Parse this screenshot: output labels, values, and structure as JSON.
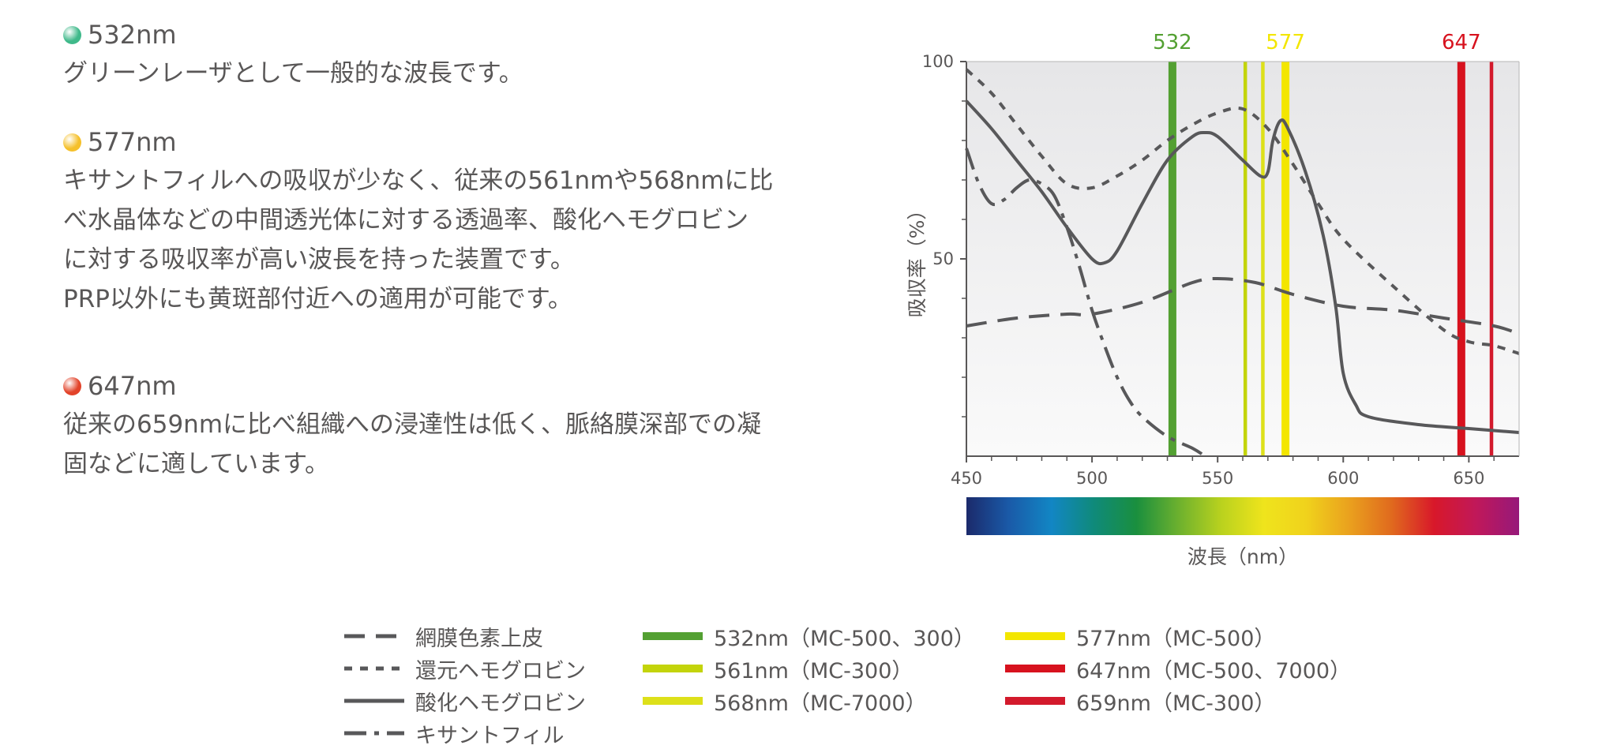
{
  "sections": [
    {
      "title": "532nm",
      "body": "グリーンレーザとして一般的な波長です。",
      "dot_color": "#3fb98a"
    },
    {
      "title": "577nm",
      "body": "キサントフィルへの吸収が少なく、従来の561nmや568nmに比\nべ水晶体などの中間透光体に対する透過率、酸化ヘモグロビン\nに対する吸収率が高い波長を持った装置です。\nPRP以外にも黄斑部付近への適用が可能です。",
      "dot_color": "#f5c02a"
    },
    {
      "title": "647nm",
      "body": "従来の659nmに比べ組織への浸達性は低く、脈絡膜深部での凝\n固などに適しています。",
      "dot_color": "#e2432a"
    }
  ],
  "chart_data": {
    "type": "line",
    "xlabel": "波長（nm）",
    "ylabel": "吸収率（%）",
    "xlim": [
      450,
      670
    ],
    "ylim": [
      0,
      100
    ],
    "x_ticks": [
      "450",
      "500",
      "550",
      "600",
      "650"
    ],
    "y_ticks": [
      "100",
      "50"
    ],
    "background": "light-gray gradient",
    "series": [
      {
        "name": "網膜色素上皮",
        "style": "long-dash",
        "color": "#58585a",
        "points": [
          [
            450,
            33
          ],
          [
            470,
            35
          ],
          [
            490,
            36
          ],
          [
            500,
            36
          ],
          [
            520,
            39
          ],
          [
            540,
            44
          ],
          [
            550,
            45
          ],
          [
            565,
            44
          ],
          [
            580,
            41
          ],
          [
            600,
            38
          ],
          [
            620,
            37
          ],
          [
            640,
            35
          ],
          [
            660,
            33
          ],
          [
            670,
            31
          ]
        ]
      },
      {
        "name": "還元ヘモグロビン",
        "style": "short-dash",
        "color": "#58585a",
        "points": [
          [
            450,
            98
          ],
          [
            460,
            92
          ],
          [
            470,
            84
          ],
          [
            480,
            76
          ],
          [
            490,
            69
          ],
          [
            500,
            68
          ],
          [
            510,
            71
          ],
          [
            520,
            75
          ],
          [
            530,
            80
          ],
          [
            540,
            84
          ],
          [
            550,
            87
          ],
          [
            560,
            88
          ],
          [
            570,
            83
          ],
          [
            580,
            74
          ],
          [
            590,
            64
          ],
          [
            600,
            55
          ],
          [
            620,
            43
          ],
          [
            640,
            32
          ],
          [
            650,
            29
          ],
          [
            660,
            28
          ],
          [
            670,
            26
          ]
        ]
      },
      {
        "name": "酸化ヘモグロビン",
        "style": "solid",
        "color": "#58585a",
        "points": [
          [
            450,
            90
          ],
          [
            460,
            83
          ],
          [
            470,
            75
          ],
          [
            480,
            67
          ],
          [
            490,
            58
          ],
          [
            500,
            50
          ],
          [
            505,
            49
          ],
          [
            510,
            52
          ],
          [
            520,
            64
          ],
          [
            530,
            75
          ],
          [
            540,
            81
          ],
          [
            545,
            82
          ],
          [
            550,
            81
          ],
          [
            560,
            75
          ],
          [
            567,
            71
          ],
          [
            570,
            72
          ],
          [
            572,
            80
          ],
          [
            575,
            85
          ],
          [
            578,
            83
          ],
          [
            585,
            72
          ],
          [
            592,
            56
          ],
          [
            597,
            38
          ],
          [
            600,
            21
          ],
          [
            605,
            13
          ],
          [
            610,
            10
          ],
          [
            630,
            8
          ],
          [
            650,
            7
          ],
          [
            670,
            6
          ]
        ]
      },
      {
        "name": "キサントフィル",
        "style": "dash-dot",
        "color": "#58585a",
        "points": [
          [
            450,
            78
          ],
          [
            455,
            69
          ],
          [
            460,
            64
          ],
          [
            465,
            65
          ],
          [
            470,
            68
          ],
          [
            475,
            70
          ],
          [
            480,
            69
          ],
          [
            485,
            66
          ],
          [
            490,
            58
          ],
          [
            495,
            48
          ],
          [
            500,
            37
          ],
          [
            505,
            28
          ],
          [
            510,
            20
          ],
          [
            515,
            14
          ],
          [
            520,
            10
          ],
          [
            530,
            5
          ],
          [
            540,
            2
          ],
          [
            545,
            0
          ]
        ]
      }
    ],
    "laser_lines": [
      {
        "nm": 532,
        "color": "#53a032",
        "label": "532"
      },
      {
        "nm": 561,
        "color": "#c3d40a",
        "label": ""
      },
      {
        "nm": 568,
        "color": "#dde01a",
        "label": ""
      },
      {
        "nm": 577,
        "color": "#f3e600",
        "label": "577"
      },
      {
        "nm": 647,
        "color": "#d7121e",
        "label": "647"
      },
      {
        "nm": 659,
        "color": "#d31a2c",
        "label": ""
      }
    ],
    "spectrum": [
      "#1b2a6b",
      "#1a5aa8",
      "#1286c4",
      "#0f8a7a",
      "#1a8f3e",
      "#6db12e",
      "#bad21e",
      "#efe41c",
      "#f0d21c",
      "#eaa11e",
      "#e06a1e",
      "#d8182a",
      "#c0185a",
      "#96197a"
    ]
  },
  "legend": [
    {
      "label": "網膜色素上皮",
      "kind": "long-dash",
      "color": "#58585a"
    },
    {
      "label": "還元ヘモグロビン",
      "kind": "short-dash",
      "color": "#58585a"
    },
    {
      "label": "酸化ヘモグロビン",
      "kind": "solid",
      "color": "#58585a"
    },
    {
      "label": "キサントフィル",
      "kind": "dash-dot",
      "color": "#58585a"
    },
    {
      "label": "532nm（MC-500、300）",
      "kind": "bar",
      "color": "#53a032"
    },
    {
      "label": "561nm（MC-300）",
      "kind": "bar",
      "color": "#c3d40a"
    },
    {
      "label": "568nm（MC-7000）",
      "kind": "bar",
      "color": "#dde01a"
    },
    {
      "label": "577nm（MC-500）",
      "kind": "bar",
      "color": "#f3e600"
    },
    {
      "label": "647nm（MC-500、7000）",
      "kind": "bar",
      "color": "#d7121e"
    },
    {
      "label": "659nm（MC-300）",
      "kind": "bar",
      "color": "#d31a2c"
    }
  ]
}
